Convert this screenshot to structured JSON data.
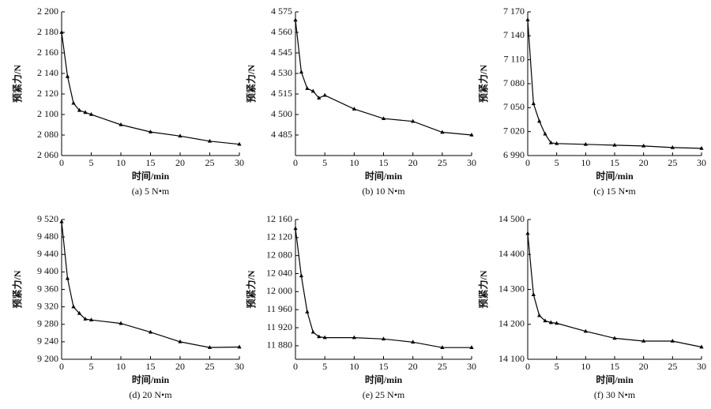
{
  "chart_data": [
    {
      "type": "line",
      "caption": "(a) 5 N•m",
      "x_label": "时间/min",
      "y_label": "预紧力/N",
      "color": "#000000",
      "x": [
        0,
        1,
        2,
        3,
        4,
        5,
        10,
        15,
        20,
        25,
        30
      ],
      "values": [
        2180,
        2137,
        2111,
        2104,
        2102,
        2100,
        2090,
        2083,
        2079,
        2074,
        2071
      ],
      "xlim": [
        0,
        30
      ],
      "xticks": [
        0,
        5,
        10,
        15,
        20,
        25,
        30
      ],
      "ylim": [
        2060,
        2200
      ],
      "yticks": [
        {
          "value": 2060,
          "label": "2 060"
        },
        {
          "value": 2080,
          "label": "2 080"
        },
        {
          "value": 2100,
          "label": "2 100"
        },
        {
          "value": 2120,
          "label": "2 120"
        },
        {
          "value": 2140,
          "label": "2 140"
        },
        {
          "value": 2160,
          "label": "2 160"
        },
        {
          "value": 2180,
          "label": "2 180"
        },
        {
          "value": 2200,
          "label": "2 200"
        }
      ]
    },
    {
      "type": "line",
      "caption": "(b) 10 N•m",
      "x_label": "时间/min",
      "y_label": "预紧力/N",
      "color": "#000000",
      "x": [
        0,
        1,
        2,
        3,
        4,
        5,
        10,
        15,
        20,
        25,
        30
      ],
      "values": [
        4569,
        4531,
        4519,
        4517,
        4512,
        4514,
        4504,
        4497,
        4495,
        4487,
        4485
      ],
      "xlim": [
        0,
        30
      ],
      "xticks": [
        0,
        5,
        10,
        15,
        20,
        25,
        30
      ],
      "ylim": [
        4470,
        4575
      ],
      "yticks": [
        {
          "value": 4485,
          "label": "4 485"
        },
        {
          "value": 4500,
          "label": "4 500"
        },
        {
          "value": 4515,
          "label": "4 515"
        },
        {
          "value": 4530,
          "label": "4 530"
        },
        {
          "value": 4545,
          "label": "4 545"
        },
        {
          "value": 4560,
          "label": "4 560"
        },
        {
          "value": 4575,
          "label": "4 575"
        }
      ]
    },
    {
      "type": "line",
      "caption": "(c) 15 N•m",
      "x_label": "时间/min",
      "y_label": "预紧力/N",
      "color": "#000000",
      "x": [
        0,
        1,
        2,
        3,
        4,
        5,
        10,
        15,
        20,
        25,
        30
      ],
      "values": [
        7160,
        7055,
        7033,
        7017,
        7006,
        7005,
        7004,
        7003,
        7002,
        7000,
        6999
      ],
      "xlim": [
        0,
        30
      ],
      "xticks": [
        0,
        5,
        10,
        15,
        20,
        25,
        30
      ],
      "ylim": [
        6990,
        7170
      ],
      "yticks": [
        {
          "value": 6990,
          "label": "6 990"
        },
        {
          "value": 7020,
          "label": "7 020"
        },
        {
          "value": 7050,
          "label": "7 050"
        },
        {
          "value": 7080,
          "label": "7 080"
        },
        {
          "value": 7110,
          "label": "7 110"
        },
        {
          "value": 7140,
          "label": "7 140"
        },
        {
          "value": 7170,
          "label": "7 170"
        }
      ]
    },
    {
      "type": "line",
      "caption": "(d) 20 N•m",
      "x_label": "时间/min",
      "y_label": "预紧力/N",
      "color": "#000000",
      "x": [
        0,
        1,
        2,
        3,
        4,
        5,
        10,
        15,
        20,
        25,
        30
      ],
      "values": [
        9515,
        9385,
        9320,
        9305,
        9292,
        9290,
        9282,
        9262,
        9240,
        9227,
        9228
      ],
      "xlim": [
        0,
        30
      ],
      "xticks": [
        0,
        5,
        10,
        15,
        20,
        25,
        30
      ],
      "ylim": [
        9200,
        9520
      ],
      "yticks": [
        {
          "value": 9200,
          "label": "9 200"
        },
        {
          "value": 9240,
          "label": "9 240"
        },
        {
          "value": 9280,
          "label": "9 280"
        },
        {
          "value": 9320,
          "label": "9 320"
        },
        {
          "value": 9360,
          "label": "9 360"
        },
        {
          "value": 9400,
          "label": "9 400"
        },
        {
          "value": 9440,
          "label": "9 440"
        },
        {
          "value": 9480,
          "label": "9 480"
        },
        {
          "value": 9520,
          "label": "9 520"
        }
      ]
    },
    {
      "type": "line",
      "caption": "(e) 25 N•m",
      "x_label": "时间/min",
      "y_label": "预紧力/N",
      "color": "#000000",
      "x": [
        0,
        1,
        2,
        3,
        4,
        5,
        10,
        15,
        20,
        25,
        30
      ],
      "values": [
        12140,
        12035,
        11955,
        11910,
        11900,
        11898,
        11898,
        11895,
        11888,
        11876,
        11876
      ],
      "xlim": [
        0,
        30
      ],
      "xticks": [
        0,
        5,
        10,
        15,
        20,
        25,
        30
      ],
      "ylim": [
        11850,
        12160
      ],
      "yticks": [
        {
          "value": 11880,
          "label": "11 880"
        },
        {
          "value": 11920,
          "label": "11 920"
        },
        {
          "value": 11960,
          "label": "11 960"
        },
        {
          "value": 12000,
          "label": "12 000"
        },
        {
          "value": 12040,
          "label": "12 040"
        },
        {
          "value": 12080,
          "label": "12 080"
        },
        {
          "value": 12120,
          "label": "12 120"
        },
        {
          "value": 12160,
          "label": "12 160"
        }
      ]
    },
    {
      "type": "line",
      "caption": "(f) 30 N•m",
      "x_label": "时间/min",
      "y_label": "预紧力/N",
      "color": "#000000",
      "x": [
        0,
        1,
        2,
        3,
        4,
        5,
        10,
        15,
        20,
        25,
        30
      ],
      "values": [
        14460,
        14285,
        14225,
        14210,
        14205,
        14203,
        14180,
        14160,
        14152,
        14152,
        14135
      ],
      "xlim": [
        0,
        30
      ],
      "xticks": [
        0,
        5,
        10,
        15,
        20,
        25,
        30
      ],
      "ylim": [
        14100,
        14500
      ],
      "yticks": [
        {
          "value": 14100,
          "label": "14 100"
        },
        {
          "value": 14200,
          "label": "14 200"
        },
        {
          "value": 14300,
          "label": "14 300"
        },
        {
          "value": 14400,
          "label": "14 400"
        },
        {
          "value": 14500,
          "label": "14 500"
        }
      ]
    }
  ]
}
